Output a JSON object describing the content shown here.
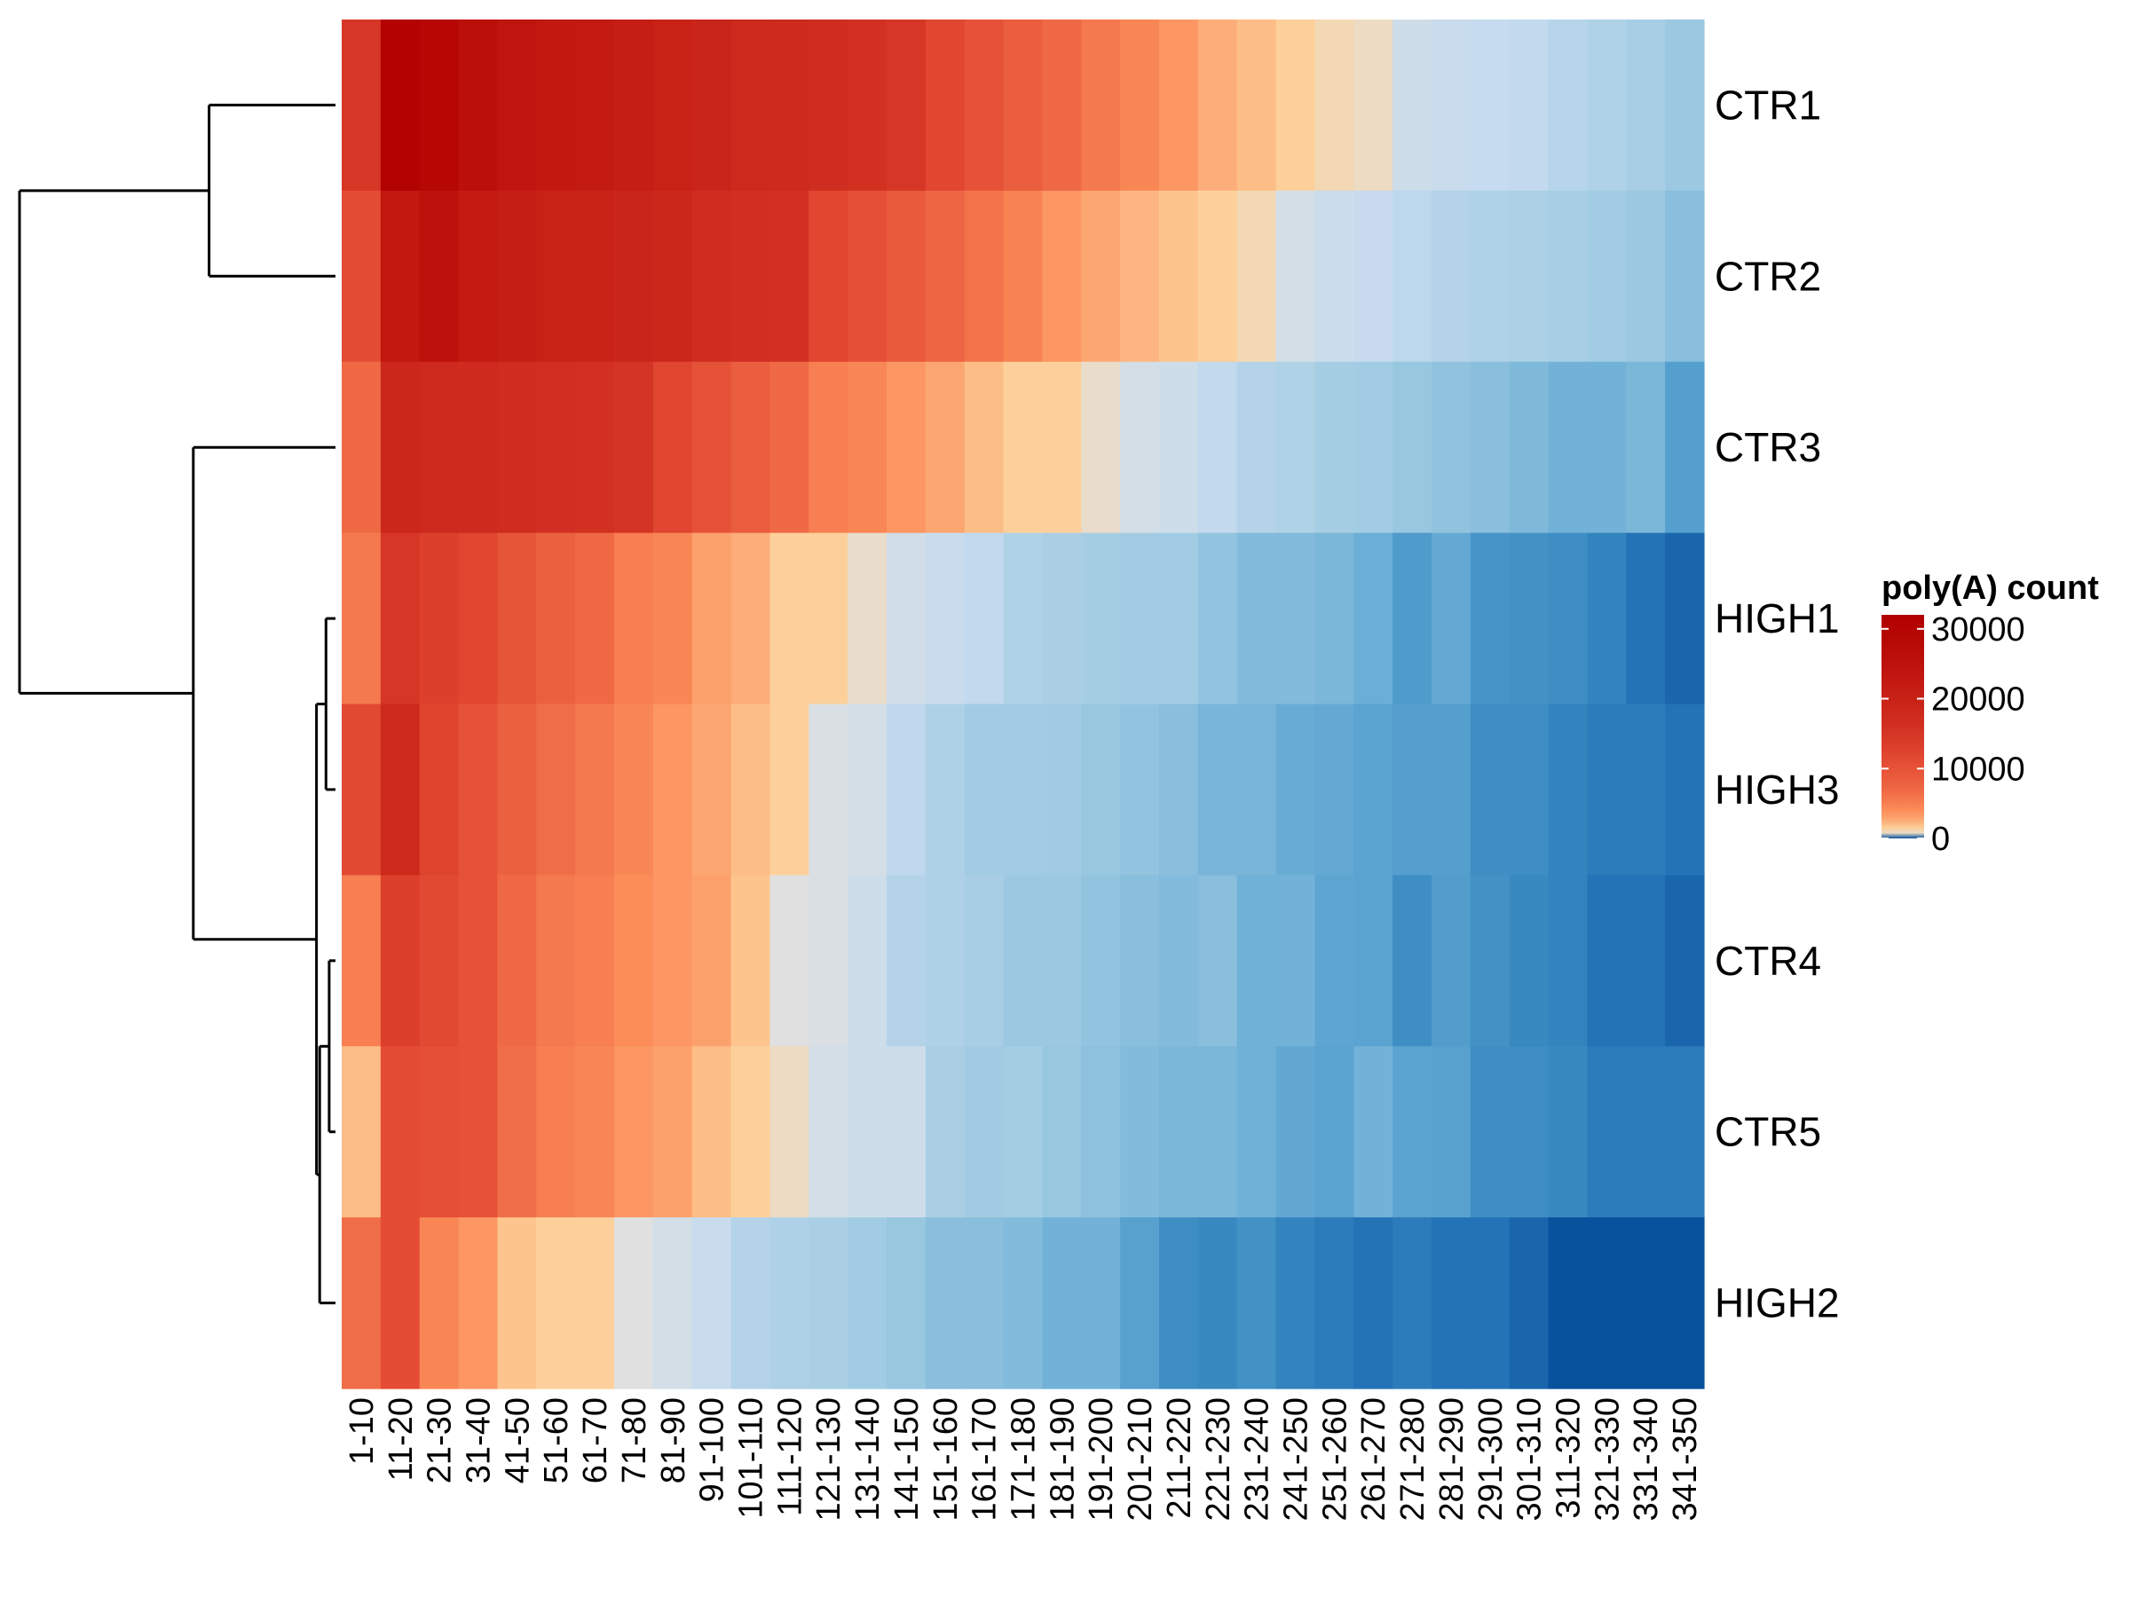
{
  "chart_data": {
    "type": "heatmap",
    "rows": [
      "CTR1",
      "CTR2",
      "CTR3",
      "HIGH1",
      "HIGH3",
      "CTR4",
      "CTR5",
      "HIGH2"
    ],
    "columns": [
      "1-10",
      "11-20",
      "21-30",
      "31-40",
      "41-50",
      "51-60",
      "61-70",
      "71-80",
      "81-90",
      "91-100",
      "101-110",
      "111-120",
      "121-130",
      "131-140",
      "141-150",
      "151-160",
      "161-170",
      "171-180",
      "181-190",
      "191-200",
      "201-210",
      "211-220",
      "221-230",
      "231-240",
      "241-250",
      "251-260",
      "261-270",
      "271-280",
      "281-290",
      "291-300",
      "301-310",
      "311-320",
      "321-330",
      "331-340",
      "341-350"
    ],
    "values": [
      [
        15000,
        31000,
        29000,
        26000,
        24000,
        23000,
        22000,
        21000,
        20000,
        19000,
        18000,
        17500,
        17000,
        16000,
        15000,
        12000,
        10000,
        8500,
        7000,
        5500,
        4500,
        3500,
        2500,
        2000,
        1500,
        1000,
        800,
        250,
        200,
        180,
        160,
        120,
        100,
        80,
        60
      ],
      [
        11000,
        23000,
        25000,
        22000,
        21000,
        20000,
        19500,
        19000,
        18500,
        17000,
        16500,
        16000,
        12000,
        10500,
        9000,
        7500,
        6000,
        4800,
        3500,
        2800,
        2200,
        1800,
        1500,
        1000,
        300,
        220,
        190,
        140,
        110,
        100,
        90,
        80,
        70,
        60,
        40
      ],
      [
        7000,
        18500,
        18000,
        17500,
        17000,
        16500,
        16000,
        15500,
        12000,
        10000,
        8500,
        7000,
        5000,
        4500,
        3500,
        2800,
        2000,
        1500,
        1500,
        700,
        300,
        250,
        160,
        110,
        100,
        75,
        70,
        55,
        48,
        40,
        33,
        25,
        25,
        30,
        12
      ],
      [
        5500,
        15000,
        13000,
        12000,
        9500,
        8000,
        7000,
        5000,
        4500,
        3000,
        2500,
        1500,
        1500,
        700,
        280,
        200,
        160,
        100,
        85,
        75,
        70,
        70,
        50,
        35,
        35,
        30,
        22,
        10,
        18,
        8,
        7,
        6,
        4,
        2,
        1
      ],
      [
        11500,
        18000,
        12500,
        10000,
        8000,
        6500,
        5500,
        4500,
        3500,
        2800,
        2000,
        1500,
        400,
        300,
        150,
        95,
        70,
        70,
        65,
        55,
        50,
        40,
        28,
        28,
        20,
        18,
        14,
        12,
        12,
        6,
        6,
        4,
        3,
        3,
        2
      ],
      [
        5000,
        13000,
        11500,
        10000,
        7000,
        5500,
        5000,
        4000,
        3500,
        3000,
        1800,
        500,
        400,
        250,
        110,
        95,
        80,
        60,
        60,
        50,
        40,
        35,
        40,
        24,
        25,
        15,
        14,
        6,
        11,
        7,
        5,
        4,
        2,
        2,
        1
      ],
      [
        2000,
        11000,
        10500,
        10000,
        6500,
        5000,
        4500,
        3500,
        3000,
        2000,
        1500,
        800,
        300,
        250,
        250,
        85,
        65,
        75,
        55,
        45,
        35,
        30,
        30,
        24,
        17,
        14,
        25,
        14,
        13,
        6,
        6,
        5,
        3,
        3,
        3
      ],
      [
        6500,
        11000,
        4500,
        3500,
        1800,
        1500,
        1500,
        500,
        300,
        200,
        110,
        95,
        85,
        70,
        55,
        40,
        40,
        35,
        25,
        25,
        13,
        6,
        5,
        7,
        4,
        3,
        2,
        3,
        2,
        2,
        1,
        0,
        0,
        0,
        0
      ]
    ],
    "legend": {
      "title": "poly(A) count",
      "ticks": [
        0,
        10000,
        20000,
        30000
      ]
    },
    "scale": {
      "min": 0,
      "max": 32000
    },
    "colors": {
      "high": "#b10000",
      "mid": "#fdd49e",
      "low": "#08519c",
      "stops": [
        "#08519c",
        "#2171b5",
        "#4292c6",
        "#6baed6",
        "#9ecae1",
        "#c6dbef",
        "#e0e0e0",
        "#fdd49e",
        "#fc8d59",
        "#e34a33",
        "#b10000"
      ]
    },
    "dendrogram": {
      "merges": [
        {
          "left": "CTR1",
          "right": "CTR2",
          "height": 0.4
        },
        {
          "left": "CTR4",
          "right": "CTR5",
          "height": 0.02
        },
        {
          "left": "HIGH1",
          "right": "HIGH3",
          "height": 0.03
        },
        {
          "left": "m2",
          "right": "HIGH2",
          "height": 0.05
        },
        {
          "left": "m3",
          "right": "m4",
          "height": 0.06
        },
        {
          "left": "CTR3",
          "right": "m5",
          "height": 0.45
        },
        {
          "left": "m1",
          "right": "m6",
          "height": 1.0
        }
      ]
    }
  }
}
